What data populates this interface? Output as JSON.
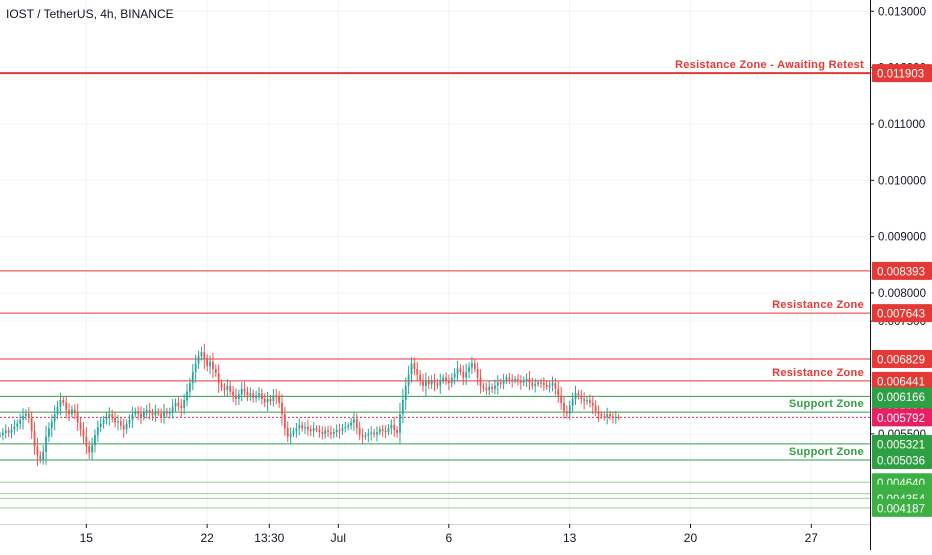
{
  "header": {
    "title": "IOST / TetherUS, 4h, BINANCE"
  },
  "chart_data": {
    "type": "candlestick",
    "symbol": "IOST / TetherUS",
    "interval": "4h",
    "exchange": "BINANCE",
    "ylim": [
      0.0039,
      0.0132
    ],
    "grid": true,
    "axis_ticks_y": [
      "0.013000",
      "0.012000",
      "0.011000",
      "0.010000",
      "0.009000",
      "0.008000",
      "0.007500",
      "0.005500"
    ],
    "axis_ticks_x": [
      {
        "label": "15",
        "x": 15
      },
      {
        "label": "22",
        "x": 22
      },
      {
        "label": "13:30",
        "x": 25.6
      },
      {
        "label": "Jul",
        "x": 29.6
      },
      {
        "label": "6",
        "x": 36
      },
      {
        "label": "13",
        "x": 43
      },
      {
        "label": "20",
        "x": 50
      },
      {
        "label": "27",
        "x": 57
      }
    ],
    "x_range": [
      10,
      60.4
    ],
    "levels": [
      {
        "value": 0.011903,
        "label": "0.011903",
        "color": "#e53935",
        "width": 2,
        "annotation": "Resistance Zone - Awaiting Retest"
      },
      {
        "value": 0.008393,
        "label": "0.008393",
        "color": "#e53935",
        "width": 1
      },
      {
        "value": 0.007643,
        "label": "0.007643",
        "color": "#e53935",
        "width": 1,
        "annotation": "Resistance Zone"
      },
      {
        "value": 0.006829,
        "label": "0.006829",
        "color": "#e53935",
        "width": 1
      },
      {
        "value": 0.006441,
        "label": "0.006441",
        "color": "#e53935",
        "width": 1,
        "annotation": "Resistance Zone"
      },
      {
        "value": 0.006166,
        "label": "0.006166",
        "color": "#2ea043",
        "width": 1
      },
      {
        "value": 0.005886,
        "label": "0.005886",
        "color": "#2ea043",
        "width": 1,
        "annotation": "Support Zone"
      },
      {
        "value": 0.005321,
        "label": "0.005321",
        "color": "#2ea043",
        "width": 1
      },
      {
        "value": 0.005036,
        "label": "0.005036",
        "color": "#2ea043",
        "width": 1,
        "annotation": "Support Zone"
      },
      {
        "value": 0.00464,
        "label": "0.004640",
        "color": "#3cb043",
        "width": 1,
        "faint": true
      },
      {
        "value": 0.00444,
        "label": "0.004440",
        "color": "#3cb043",
        "width": 1,
        "faint": true
      },
      {
        "value": 0.004354,
        "label": "0.004354",
        "color": "#3cb043",
        "width": 1,
        "faint": true
      },
      {
        "value": 0.004187,
        "label": "0.004187",
        "color": "#3cb043",
        "width": 1,
        "faint": true
      }
    ],
    "current_price": {
      "value": 0.005792,
      "label": "0.005792",
      "color": "#e91e63"
    },
    "colors": {
      "up": "#26a69a",
      "down": "#ef5350",
      "grid": "#f0f3fa",
      "axis": "#131722"
    },
    "candles": {
      "x_start": 10.0,
      "step": 0.1667,
      "close": [
        0.00548,
        0.00552,
        0.00556,
        0.00552,
        0.00558,
        0.00563,
        0.00568,
        0.00575,
        0.00582,
        0.00586,
        0.00578,
        0.00555,
        0.00528,
        0.00512,
        0.00505,
        0.00518,
        0.00545,
        0.0056,
        0.00572,
        0.00585,
        0.00598,
        0.0061,
        0.00605,
        0.00592,
        0.00585,
        0.00593,
        0.00587,
        0.0057,
        0.00558,
        0.00545,
        0.00528,
        0.00517,
        0.0053,
        0.00548,
        0.00562,
        0.00568,
        0.00575,
        0.0058,
        0.00585,
        0.00578,
        0.0057,
        0.00572,
        0.00565,
        0.00558,
        0.00568,
        0.00575,
        0.00585,
        0.0059,
        0.00586,
        0.0058,
        0.00588,
        0.00592,
        0.00587,
        0.00583,
        0.0059,
        0.00586,
        0.0058,
        0.0059,
        0.00586,
        0.00588,
        0.00598,
        0.00605,
        0.006,
        0.00596,
        0.0061,
        0.00625,
        0.0064,
        0.0066,
        0.00675,
        0.00688,
        0.00695,
        0.00682,
        0.0067,
        0.00678,
        0.00665,
        0.00658,
        0.0064,
        0.00632,
        0.00628,
        0.00635,
        0.00625,
        0.00618,
        0.00612,
        0.0062,
        0.0063,
        0.00625,
        0.00618,
        0.00622,
        0.00614,
        0.00618,
        0.00622,
        0.00612,
        0.00606,
        0.00612,
        0.00608,
        0.00618,
        0.00616,
        0.00605,
        0.00585,
        0.0056,
        0.00545,
        0.0055,
        0.00555,
        0.0056,
        0.00565,
        0.0056,
        0.00562,
        0.00558,
        0.00555,
        0.0056,
        0.00557,
        0.00553,
        0.0055,
        0.00556,
        0.00553,
        0.0055,
        0.00553,
        0.00557,
        0.00556,
        0.0056,
        0.00562,
        0.00565,
        0.0057,
        0.00576,
        0.0056,
        0.00548,
        0.00545,
        0.00547,
        0.0055,
        0.00552,
        0.00549,
        0.00553,
        0.00558,
        0.00555,
        0.00553,
        0.0056,
        0.00566,
        0.00557,
        0.00552,
        0.00585,
        0.0061,
        0.00635,
        0.00655,
        0.00675,
        0.00665,
        0.00655,
        0.00645,
        0.00635,
        0.00645,
        0.00638,
        0.00644,
        0.0064,
        0.00636,
        0.00645,
        0.0065,
        0.00644,
        0.0064,
        0.0065,
        0.00657,
        0.00666,
        0.0066,
        0.0065,
        0.0066,
        0.00668,
        0.00675,
        0.00665,
        0.0065,
        0.00635,
        0.00632,
        0.00628,
        0.00633,
        0.0063,
        0.00636,
        0.00641,
        0.00638,
        0.00645,
        0.0065,
        0.00646,
        0.00645,
        0.00647,
        0.00643,
        0.00641,
        0.00645,
        0.00648,
        0.00641,
        0.00635,
        0.00638,
        0.00641,
        0.0064,
        0.00637,
        0.00633,
        0.00636,
        0.0064,
        0.0063,
        0.00618,
        0.00605,
        0.0059,
        0.00586,
        0.006,
        0.00612,
        0.00622,
        0.00618,
        0.00612,
        0.00608,
        0.0061,
        0.00605,
        0.006,
        0.0059,
        0.00585,
        0.00582,
        0.0058,
        0.00585,
        0.00581,
        0.00579,
        0.0058,
        0.00579
      ]
    }
  }
}
